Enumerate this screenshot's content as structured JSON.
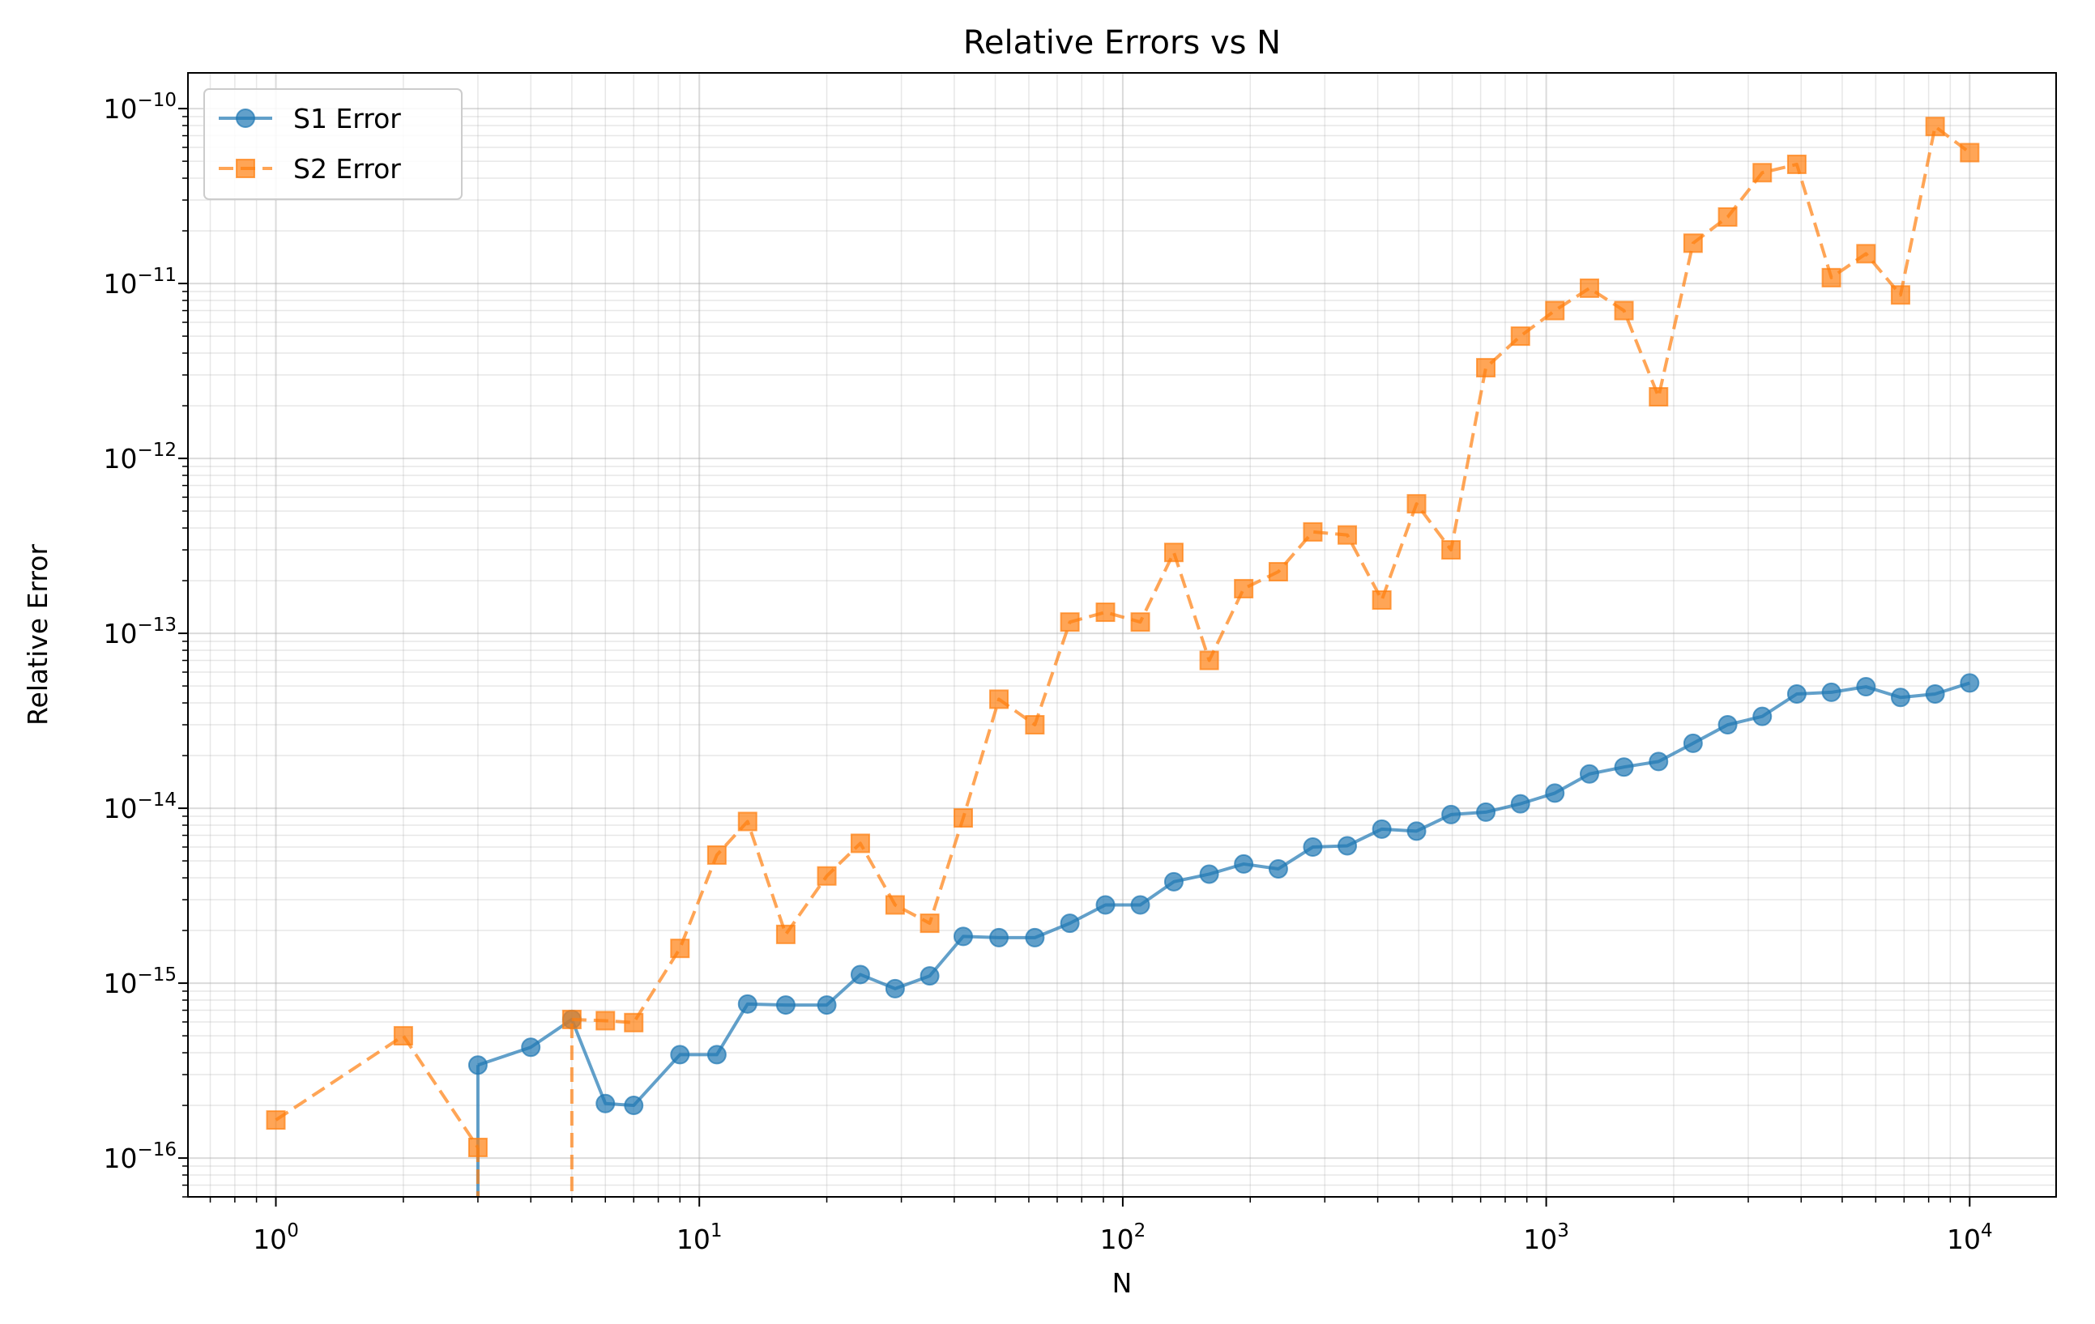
{
  "chart_data": {
    "type": "line",
    "title": "Relative Errors vs N",
    "xlabel": "N",
    "ylabel": "Relative Error",
    "xscale": "log",
    "yscale": "log",
    "xlim": [
      0.62,
      16000
    ],
    "ylim": [
      6e-17,
      1.6e-10
    ],
    "grid": true,
    "legend_position": "upper left",
    "x_ticks": [
      {
        "value": 1,
        "base": "10",
        "exp": "0"
      },
      {
        "value": 10,
        "base": "10",
        "exp": "1"
      },
      {
        "value": 100,
        "base": "10",
        "exp": "2"
      },
      {
        "value": 1000,
        "base": "10",
        "exp": "3"
      },
      {
        "value": 10000,
        "base": "10",
        "exp": "4"
      }
    ],
    "y_ticks": [
      {
        "value": 1e-16,
        "base": "10",
        "exp": "−16"
      },
      {
        "value": 1e-15,
        "base": "10",
        "exp": "−15"
      },
      {
        "value": 1e-14,
        "base": "10",
        "exp": "−14"
      },
      {
        "value": 1e-13,
        "base": "10",
        "exp": "−13"
      },
      {
        "value": 1e-12,
        "base": "10",
        "exp": "−12"
      },
      {
        "value": 1e-11,
        "base": "10",
        "exp": "−11"
      },
      {
        "value": 1e-10,
        "base": "10",
        "exp": "−10"
      }
    ],
    "series": [
      {
        "name": "S1 Error",
        "color": "#1f77b4",
        "style": "solid",
        "marker": "circle",
        "points": [
          [
            1,
            0
          ],
          [
            2,
            0
          ],
          [
            3,
            3.4e-16
          ],
          [
            4,
            4.3e-16
          ],
          [
            5,
            6.2e-16
          ],
          [
            6,
            2.05e-16
          ],
          [
            7,
            2e-16
          ],
          [
            9,
            3.9e-16
          ],
          [
            11,
            3.9e-16
          ],
          [
            13,
            7.6e-16
          ],
          [
            16,
            7.5e-16
          ],
          [
            20,
            7.5e-16
          ],
          [
            24,
            1.12e-15
          ],
          [
            29,
            9.3e-16
          ],
          [
            35,
            1.1e-15
          ],
          [
            42,
            1.85e-15
          ],
          [
            51,
            1.82e-15
          ],
          [
            62,
            1.82e-15
          ],
          [
            75,
            2.2e-15
          ],
          [
            91,
            2.8e-15
          ],
          [
            110,
            2.8e-15
          ],
          [
            132,
            3.8e-15
          ],
          [
            160,
            4.2e-15
          ],
          [
            193,
            4.8e-15
          ],
          [
            233,
            4.5e-15
          ],
          [
            281,
            6e-15
          ],
          [
            339,
            6.1e-15
          ],
          [
            409,
            7.6e-15
          ],
          [
            494,
            7.4e-15
          ],
          [
            596,
            9.2e-15
          ],
          [
            720,
            9.5e-15
          ],
          [
            869,
            1.06e-14
          ],
          [
            1048,
            1.22e-14
          ],
          [
            1265,
            1.57e-14
          ],
          [
            1526,
            1.72e-14
          ],
          [
            1842,
            1.85e-14
          ],
          [
            2222,
            2.35e-14
          ],
          [
            2682,
            3e-14
          ],
          [
            3237,
            3.35e-14
          ],
          [
            3906,
            4.5e-14
          ],
          [
            4714,
            4.6e-14
          ],
          [
            5690,
            4.95e-14
          ],
          [
            6866,
            4.3e-14
          ],
          [
            8286,
            4.5e-14
          ],
          [
            10000,
            5.2e-14
          ]
        ]
      },
      {
        "name": "S2 Error",
        "color": "#ff7f0e",
        "style": "dashed",
        "marker": "square",
        "points": [
          [
            1,
            1.65e-16
          ],
          [
            2,
            5e-16
          ],
          [
            3,
            1.15e-16
          ],
          [
            4,
            0
          ],
          [
            5,
            6.2e-16
          ],
          [
            6,
            6.1e-16
          ],
          [
            7,
            5.95e-16
          ],
          [
            9,
            1.58e-15
          ],
          [
            11,
            5.4e-15
          ],
          [
            13,
            8.4e-15
          ],
          [
            16,
            1.9e-15
          ],
          [
            20,
            4.1e-15
          ],
          [
            24,
            6.3e-15
          ],
          [
            29,
            2.8e-15
          ],
          [
            35,
            2.2e-15
          ],
          [
            42,
            8.8e-15
          ],
          [
            51,
            4.2e-14
          ],
          [
            62,
            3e-14
          ],
          [
            75,
            1.16e-13
          ],
          [
            91,
            1.32e-13
          ],
          [
            110,
            1.16e-13
          ],
          [
            132,
            2.9e-13
          ],
          [
            160,
            7e-14
          ],
          [
            193,
            1.8e-13
          ],
          [
            233,
            2.25e-13
          ],
          [
            281,
            3.8e-13
          ],
          [
            339,
            3.65e-13
          ],
          [
            409,
            1.55e-13
          ],
          [
            494,
            5.5e-13
          ],
          [
            596,
            3e-13
          ],
          [
            720,
            3.3e-12
          ],
          [
            869,
            5e-12
          ],
          [
            1048,
            7e-12
          ],
          [
            1265,
            9.4e-12
          ],
          [
            1526,
            7e-12
          ],
          [
            1842,
            2.25e-12
          ],
          [
            2222,
            1.7e-11
          ],
          [
            2682,
            2.4e-11
          ],
          [
            3237,
            4.3e-11
          ],
          [
            3906,
            4.8e-11
          ],
          [
            4714,
            1.08e-11
          ],
          [
            5690,
            1.48e-11
          ],
          [
            6866,
            8.6e-12
          ],
          [
            8286,
            7.9e-11
          ],
          [
            10000,
            5.6e-11
          ]
        ]
      }
    ]
  }
}
